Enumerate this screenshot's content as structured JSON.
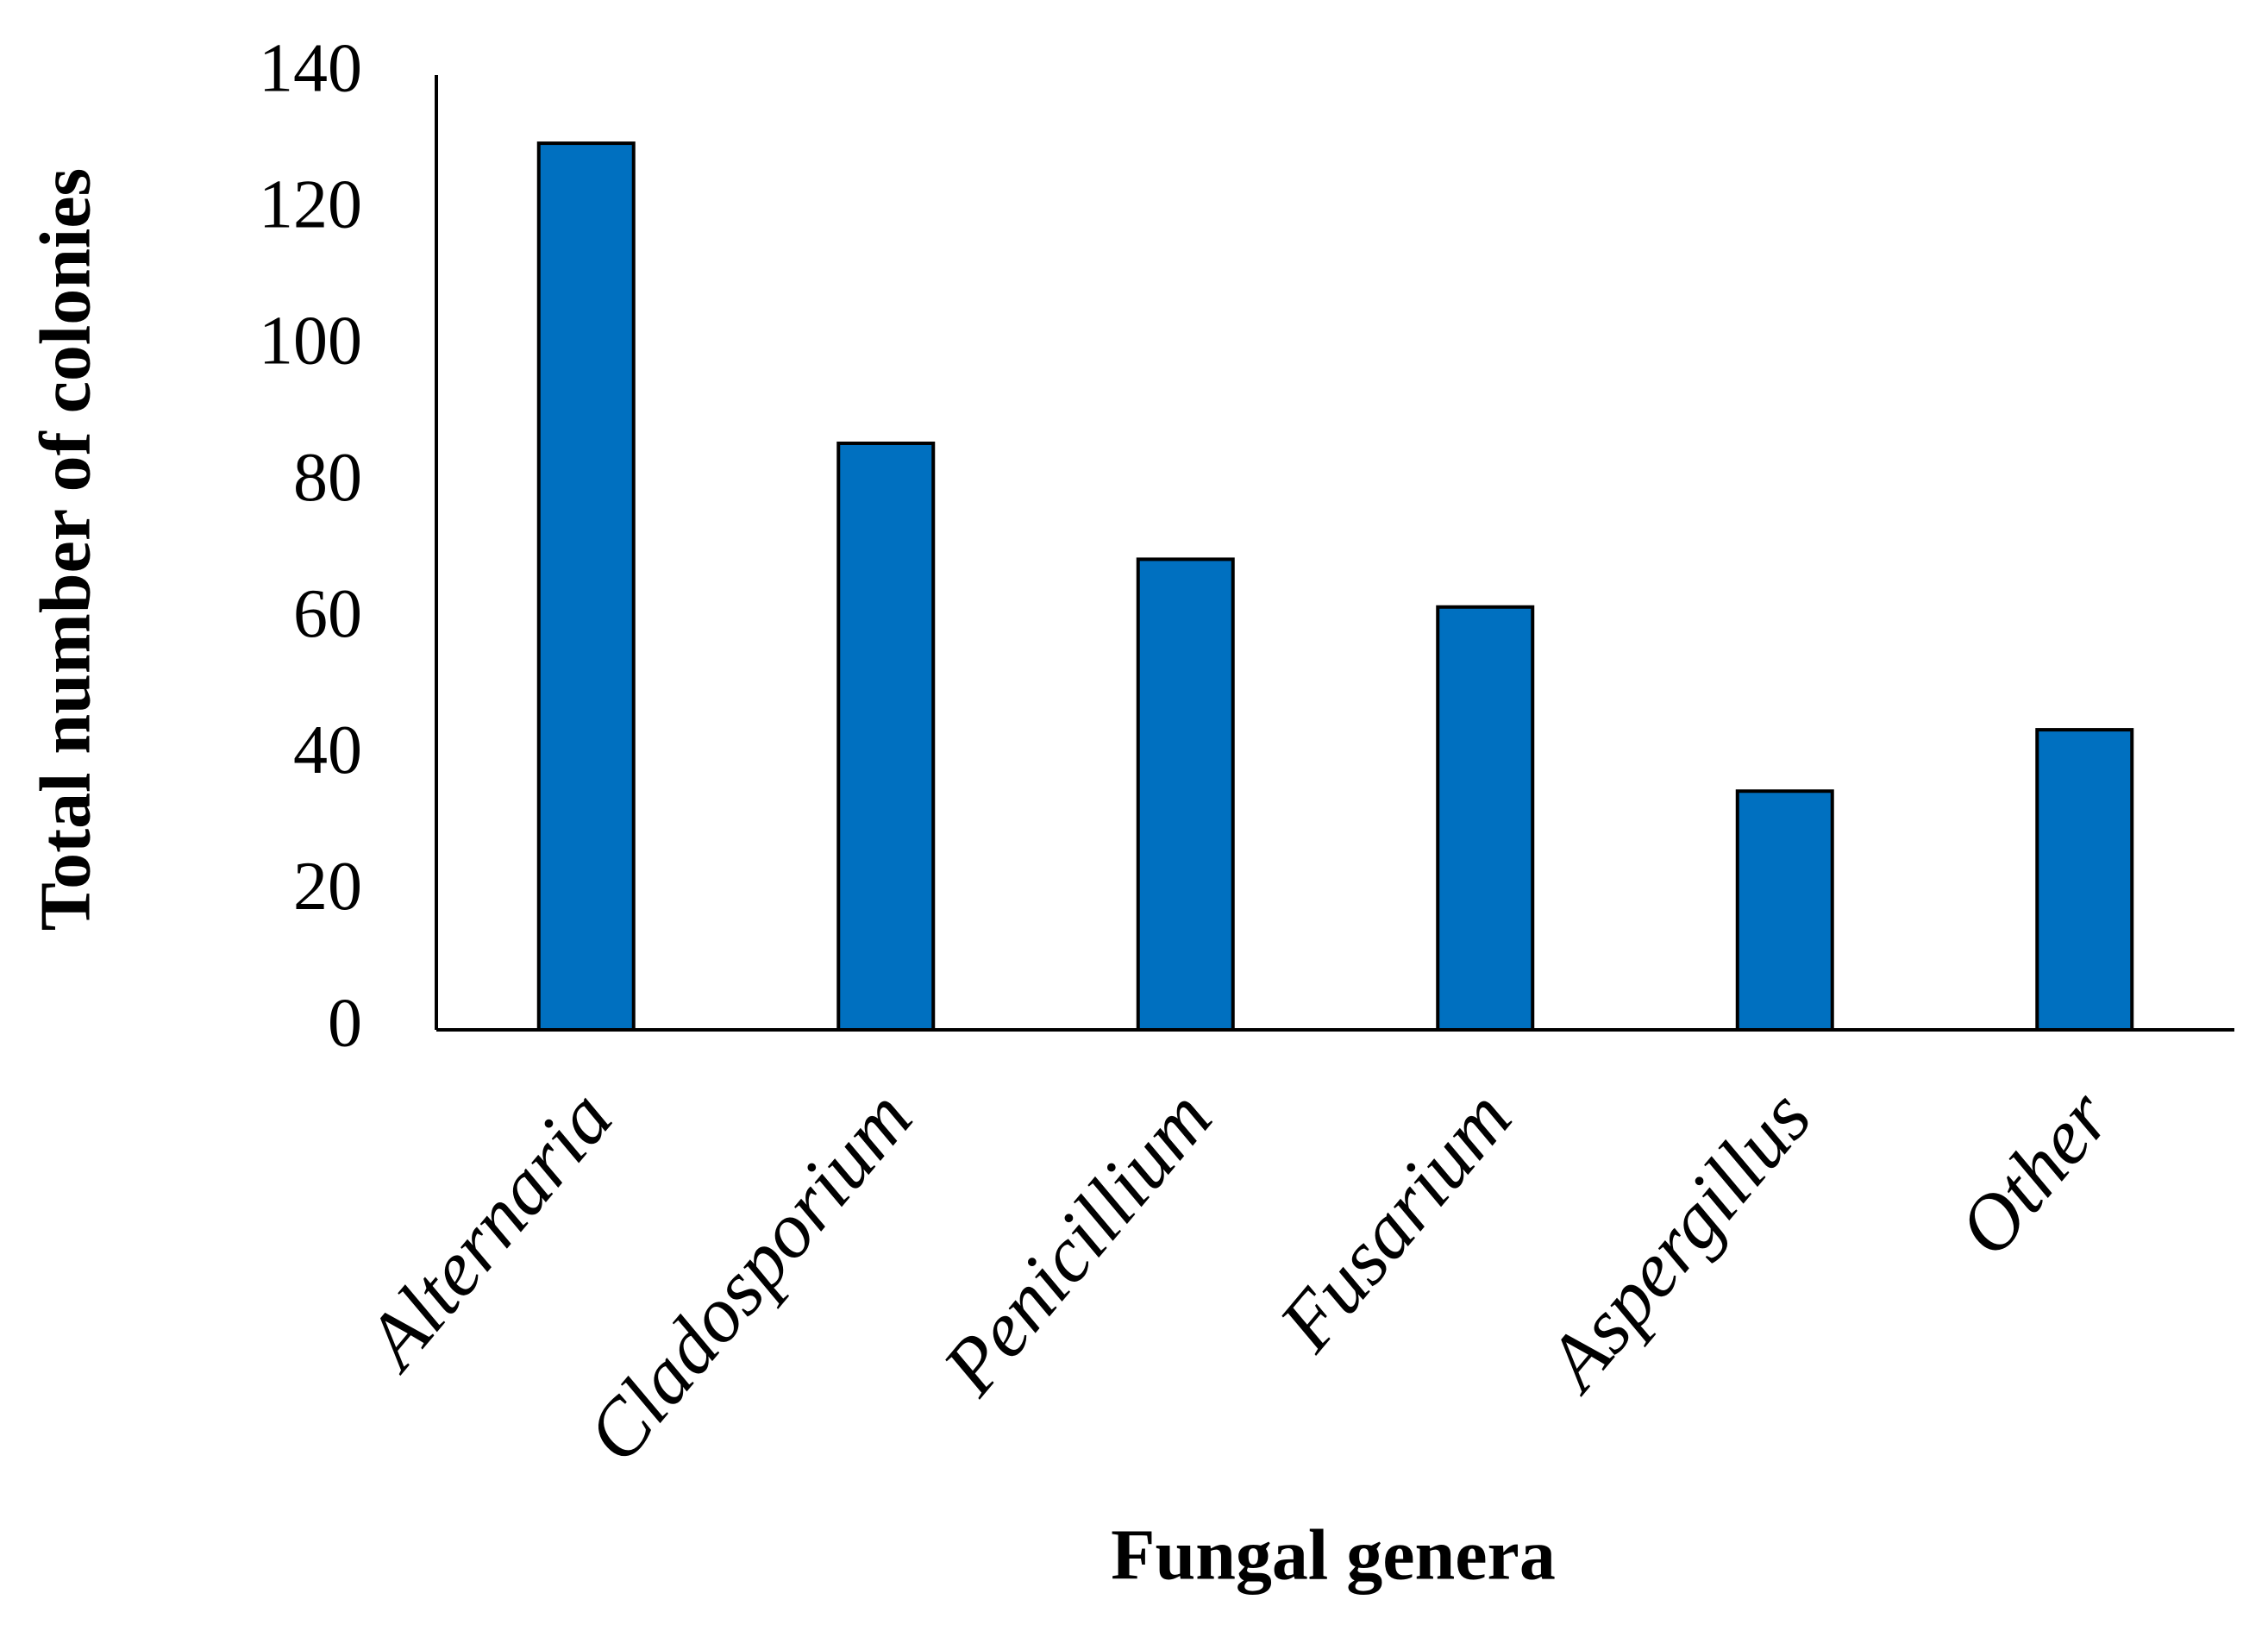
{
  "chart_data": {
    "type": "bar",
    "x_label": "Fungal genera",
    "y_label": "Total number of colonies",
    "categories": [
      "Alternaria",
      "Cladosporium",
      "Penicillium",
      "Fusarium",
      "Aspergillus",
      "Other"
    ],
    "values": [
      130,
      86,
      69,
      62,
      35,
      44
    ],
    "color": "#0070c0",
    "ylim": [
      0,
      140
    ],
    "yticks": [
      0,
      20,
      40,
      60,
      80,
      100,
      120,
      140
    ],
    "grid": false
  }
}
